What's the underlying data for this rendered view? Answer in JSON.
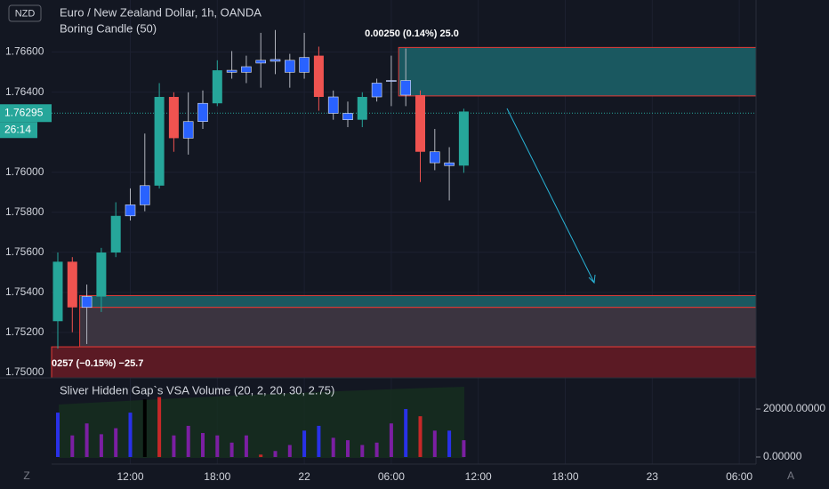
{
  "header": {
    "symbol_badge": "NZD",
    "title": "Euro / New Zealand Dollar, 1h, OANDA",
    "indicator": "Boring Candle (50)"
  },
  "measure_labels": [
    "0.00250 (0.14%) 25.0",
    "0257 (−0.15%) −25.7"
  ],
  "price_chart": {
    "type": "candlestick",
    "ylim": [
      1.74973,
      1.7686
    ],
    "yticks": [
      {
        "value": 1.75,
        "label": "1.75000"
      },
      {
        "value": 1.752,
        "label": "1.75200"
      },
      {
        "value": 1.754,
        "label": "1.75400"
      },
      {
        "value": 1.756,
        "label": "1.75600"
      },
      {
        "value": 1.758,
        "label": "1.75800"
      },
      {
        "value": 1.76,
        "label": "1.76000"
      },
      {
        "value": 1.764,
        "label": "1.76400"
      },
      {
        "value": 1.766,
        "label": "1.76600"
      }
    ],
    "current_price": {
      "value": 1.76295,
      "label": "1.76295",
      "countdown": "26:14"
    },
    "candles": [
      {
        "open": 1.75256,
        "high": 1.75599,
        "low": 1.75119,
        "close": 1.75553
      },
      {
        "open": 1.75553,
        "high": 1.75576,
        "low": 1.75201,
        "close": 1.75325
      },
      {
        "open": 1.75325,
        "high": 1.75439,
        "low": 1.75142,
        "close": 1.75379
      },
      {
        "open": 1.75379,
        "high": 1.75622,
        "low": 1.75302,
        "close": 1.75599
      },
      {
        "open": 1.75599,
        "high": 1.7585,
        "low": 1.75576,
        "close": 1.75782
      },
      {
        "open": 1.75782,
        "high": 1.75919,
        "low": 1.75759,
        "close": 1.75837
      },
      {
        "open": 1.75837,
        "high": 1.76193,
        "low": 1.75805,
        "close": 1.75933
      },
      {
        "open": 1.75933,
        "high": 1.76445,
        "low": 1.75919,
        "close": 1.76376
      },
      {
        "open": 1.76376,
        "high": 1.76399,
        "low": 1.76102,
        "close": 1.7617
      },
      {
        "open": 1.7617,
        "high": 1.76399,
        "low": 1.76088,
        "close": 1.76253
      },
      {
        "open": 1.76253,
        "high": 1.76408,
        "low": 1.76216,
        "close": 1.76344
      },
      {
        "open": 1.76344,
        "high": 1.76559,
        "low": 1.7633,
        "close": 1.76509
      },
      {
        "open": 1.76509,
        "high": 1.76605,
        "low": 1.76467,
        "close": 1.76499
      },
      {
        "open": 1.76499,
        "high": 1.76582,
        "low": 1.76445,
        "close": 1.76527
      },
      {
        "open": 1.76545,
        "high": 1.76696,
        "low": 1.76422,
        "close": 1.76559
      },
      {
        "open": 1.76563,
        "high": 1.7671,
        "low": 1.7649,
        "close": 1.76554
      },
      {
        "open": 1.76559,
        "high": 1.76591,
        "low": 1.76422,
        "close": 1.76499
      },
      {
        "open": 1.76499,
        "high": 1.76696,
        "low": 1.76467,
        "close": 1.76573
      },
      {
        "open": 1.76582,
        "high": 1.76627,
        "low": 1.76307,
        "close": 1.76376
      },
      {
        "open": 1.76376,
        "high": 1.76408,
        "low": 1.76262,
        "close": 1.76294
      },
      {
        "open": 1.76294,
        "high": 1.76353,
        "low": 1.76225,
        "close": 1.76262
      },
      {
        "open": 1.76262,
        "high": 1.76399,
        "low": 1.76225,
        "close": 1.76376
      },
      {
        "open": 1.76376,
        "high": 1.76467,
        "low": 1.76353,
        "close": 1.76445
      },
      {
        "open": 1.76454,
        "high": 1.76582,
        "low": 1.7633,
        "close": 1.76458
      },
      {
        "open": 1.76458,
        "high": 1.76618,
        "low": 1.7633,
        "close": 1.76385
      },
      {
        "open": 1.76385,
        "high": 1.76408,
        "low": 1.75951,
        "close": 1.76102
      },
      {
        "open": 1.76102,
        "high": 1.76216,
        "low": 1.7601,
        "close": 1.76047
      },
      {
        "open": 1.76047,
        "high": 1.76125,
        "low": 1.75859,
        "close": 1.76033
      },
      {
        "open": 1.76033,
        "high": 1.76317,
        "low": 1.75997,
        "close": 1.76303
      }
    ],
    "colors": [
      "#26a69a",
      "#ef5350",
      "#2962ff",
      "#26a69a",
      "#26a69a",
      "#2962ff",
      "#2962ff",
      "#26a69a",
      "#ef5350",
      "#2962ff",
      "#2962ff",
      "#26a69a",
      "#2962ff",
      "#2962ff",
      "#2962ff",
      "#2962ff",
      "#2962ff",
      "#2962ff",
      "#ef5350",
      "#2962ff",
      "#2962ff",
      "#26a69a",
      "#2962ff",
      "#2962ff",
      "#2962ff",
      "#ef5350",
      "#2962ff",
      "#2962ff",
      "#26a69a"
    ],
    "zones": [
      {
        "top": 1.76623,
        "bottom": 1.76381,
        "start": 24,
        "fill": "#1a5860",
        "stroke": "#e53935"
      },
      {
        "top": 1.75384,
        "bottom": 1.75325,
        "start": 2,
        "fill": "#1a5860",
        "stroke": "#e53935"
      },
      {
        "top": 1.75325,
        "bottom": 1.75128,
        "start": 2,
        "fill": "#3b3440",
        "stroke": "#e53935"
      },
      {
        "top": 1.75128,
        "bottom": 1.74973,
        "start": 0,
        "fill": "#5b1a24",
        "stroke": "#e53935"
      }
    ]
  },
  "volume_chart": {
    "type": "bar",
    "title": "Sliver Hidden Gap`s VSA Volume (20, 2, 20, 30, 2.75)",
    "ylim": [
      0,
      33000
    ],
    "yticks": [
      {
        "value": 0,
        "label": "0.00000"
      },
      {
        "value": 20000,
        "label": "20000.00000"
      }
    ],
    "values": [
      18500,
      9000,
      14000,
      9500,
      12000,
      18500,
      24000,
      25000,
      9000,
      13000,
      10000,
      9000,
      6000,
      9000,
      1000,
      2500,
      5000,
      11000,
      13000,
      8000,
      7000,
      5000,
      6000,
      14000,
      20000,
      17000,
      11000,
      11000,
      7000
    ],
    "colors": [
      "#2931e8",
      "#7b1fa2",
      "#7b1fa2",
      "#7b1fa2",
      "#7b1fa2",
      "#2931e8",
      "#000000",
      "#c62828",
      "#7b1fa2",
      "#7b1fa2",
      "#7b1fa2",
      "#7b1fa2",
      "#7b1fa2",
      "#7b1fa2",
      "#c62828",
      "#7b1fa2",
      "#7b1fa2",
      "#2931e8",
      "#2931e8",
      "#7b1fa2",
      "#7b1fa2",
      "#7b1fa2",
      "#7b1fa2",
      "#7b1fa2",
      "#2931e8",
      "#c62828",
      "#7b1fa2",
      "#2931e8",
      "#7b1fa2"
    ]
  },
  "time_axis": [
    {
      "label": "12:00",
      "index": 5
    },
    {
      "label": "18:00",
      "index": 11
    },
    {
      "label": "22",
      "index": 17
    },
    {
      "label": "06:00",
      "index": 23
    },
    {
      "label": "12:00",
      "index": 29
    },
    {
      "label": "18:00",
      "index": 35
    },
    {
      "label": "23",
      "index": 41
    },
    {
      "label": "06:00",
      "index": 47
    }
  ],
  "buttons": [
    "Z",
    "A"
  ]
}
